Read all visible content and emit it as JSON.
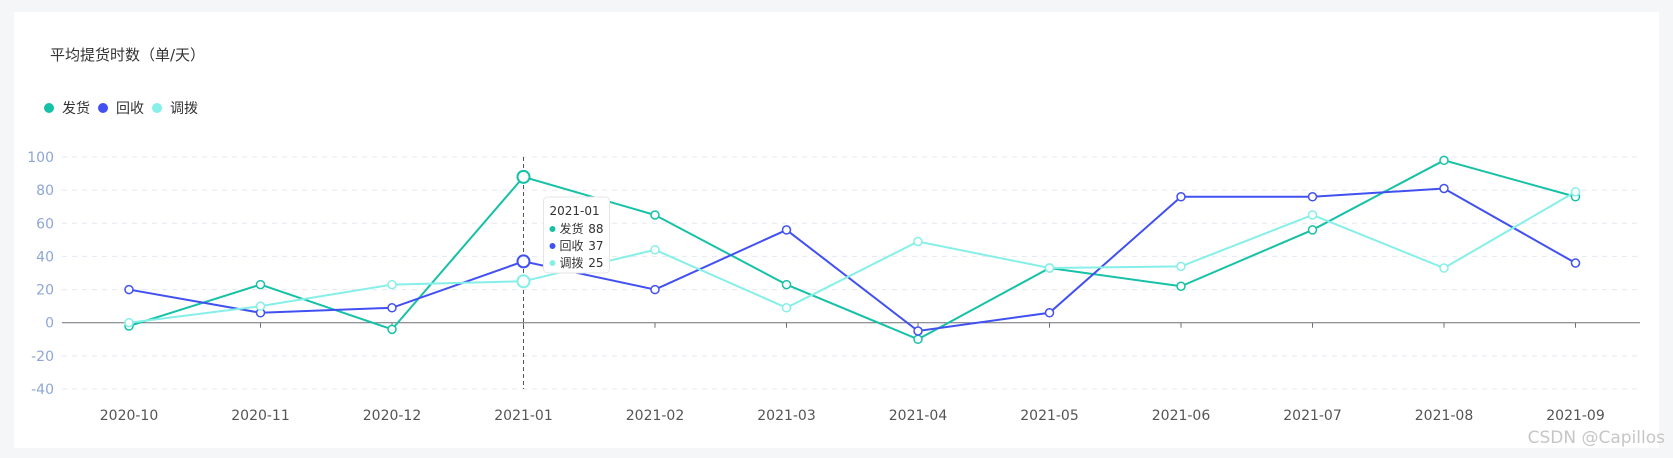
{
  "watermark": "CSDN @Capillos",
  "chart_data": {
    "type": "line",
    "title": "平均提货时数（单/天）",
    "categories": [
      "2020-10",
      "2020-11",
      "2020-12",
      "2021-01",
      "2021-02",
      "2021-03",
      "2021-04",
      "2021-05",
      "2021-06",
      "2021-07",
      "2021-08",
      "2021-09"
    ],
    "series": [
      {
        "name": "发货",
        "color": "#16c1a6",
        "values": [
          -2,
          23,
          -4,
          88,
          65,
          23,
          -10,
          33,
          22,
          56,
          98,
          76
        ]
      },
      {
        "name": "回收",
        "color": "#4150f0",
        "values": [
          20,
          6,
          9,
          37,
          20,
          56,
          -5,
          6,
          76,
          76,
          81,
          36
        ]
      },
      {
        "name": "调拨",
        "color": "#86efe8",
        "values": [
          0,
          10,
          23,
          25,
          44,
          9,
          49,
          33,
          34,
          65,
          33,
          79
        ]
      }
    ],
    "ylim": [
      -40,
      100
    ],
    "yticks": [
      -40,
      -20,
      0,
      20,
      40,
      60,
      80,
      100
    ],
    "grid": true,
    "legend_position": "top-left",
    "tooltip": {
      "category": "2021-01",
      "rows": [
        {
          "name": "发货",
          "value": "88"
        },
        {
          "name": "回收",
          "value": "37"
        },
        {
          "name": "调拨",
          "value": "25"
        }
      ]
    }
  }
}
